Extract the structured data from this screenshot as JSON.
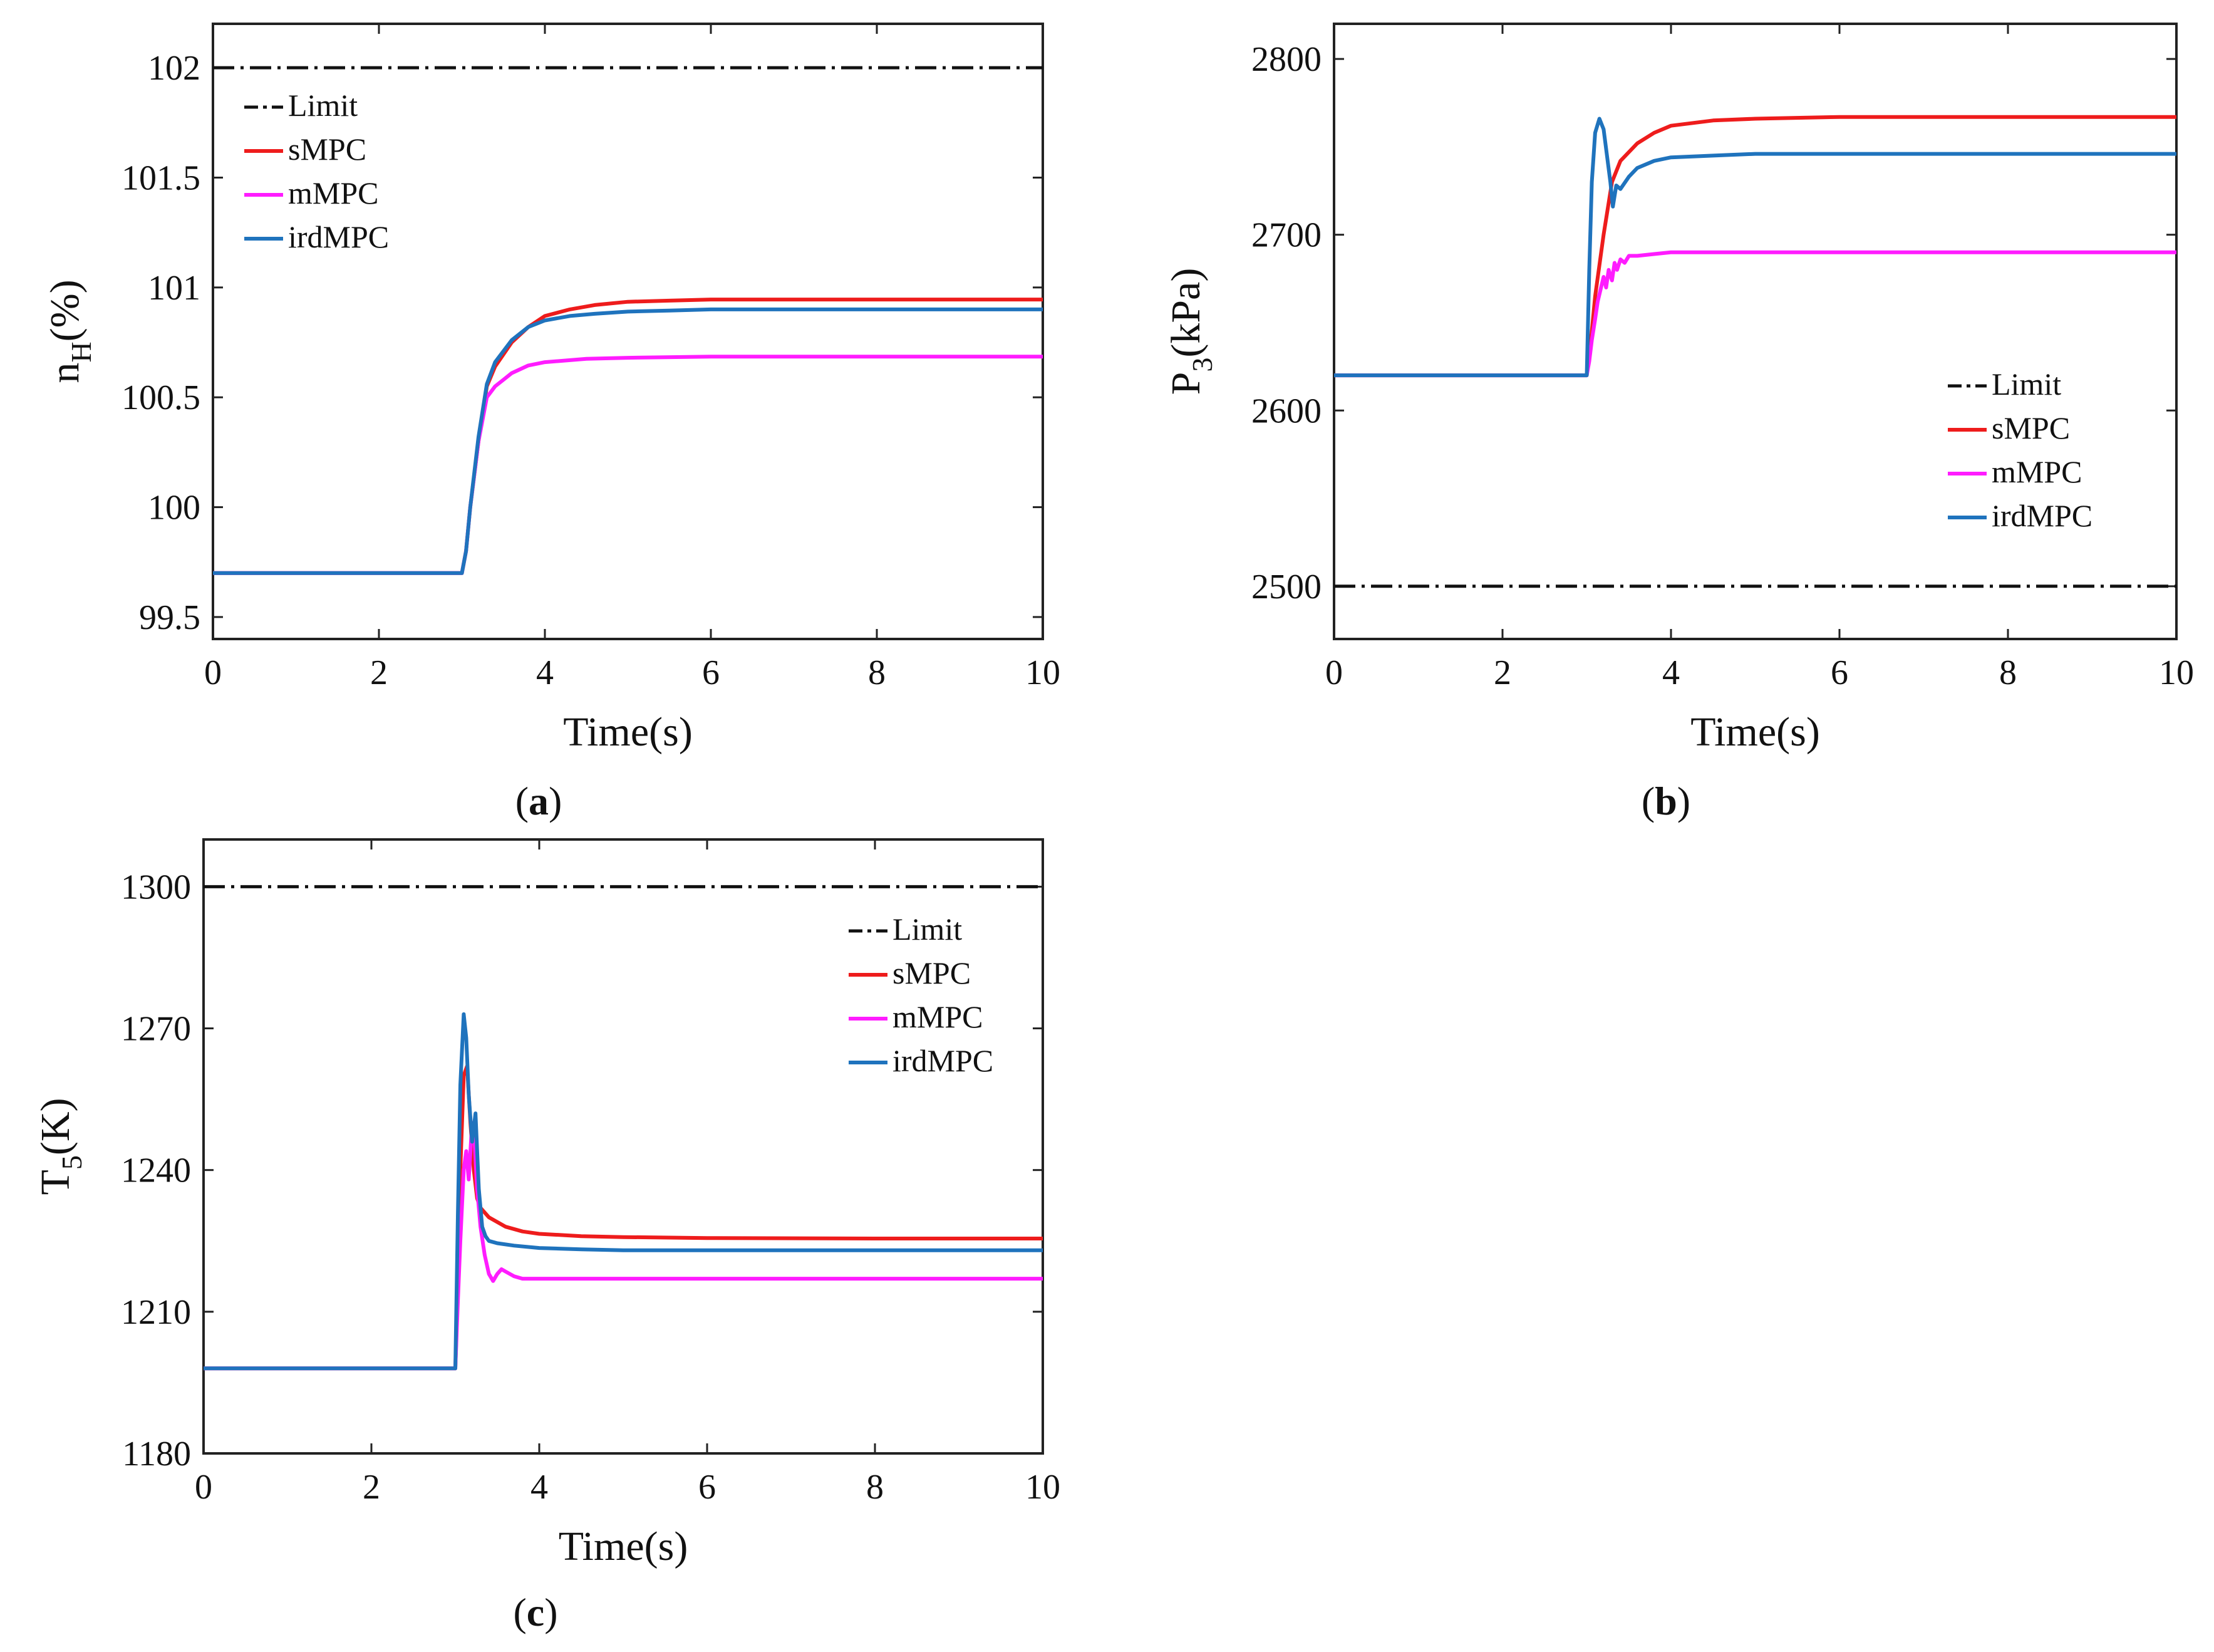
{
  "colors": {
    "Limit": "#111111",
    "sMPC": "#ee1c1c",
    "mMPC": "#ff1cff",
    "irdMPC": "#1f73bd"
  },
  "chart_data": [
    {
      "id": "a",
      "type": "line",
      "caption_letter": "a",
      "xlabel": "Time(s)",
      "ylabel_main": "n",
      "ylabel_sub": "H",
      "ylabel_unit": "(%)",
      "xlim": [
        0,
        10
      ],
      "ylim": [
        99.4,
        102.2
      ],
      "xticks": [
        "0",
        "2",
        "4",
        "6",
        "8",
        "10"
      ],
      "yticks": [
        "99.5",
        "100",
        "100.5",
        "101",
        "101.5",
        "102"
      ],
      "legend_position": "top-left",
      "series": [
        {
          "name": "Limit",
          "style": "dashdot",
          "x": [
            0,
            10
          ],
          "y": [
            102,
            102
          ]
        },
        {
          "name": "sMPC",
          "x": [
            0,
            3.0,
            3.05,
            3.1,
            3.2,
            3.3,
            3.4,
            3.6,
            3.8,
            4.0,
            4.3,
            4.6,
            5.0,
            5.5,
            6.0,
            7.0,
            8.0,
            10.0
          ],
          "y": [
            99.7,
            99.7,
            99.8,
            100.0,
            100.3,
            100.55,
            100.64,
            100.75,
            100.82,
            100.87,
            100.9,
            100.92,
            100.935,
            100.94,
            100.945,
            100.945,
            100.945,
            100.945
          ]
        },
        {
          "name": "mMPC",
          "x": [
            0,
            3.0,
            3.05,
            3.1,
            3.2,
            3.3,
            3.4,
            3.5,
            3.6,
            3.8,
            4.0,
            4.5,
            5.0,
            6.0,
            8.0,
            10.0
          ],
          "y": [
            99.7,
            99.7,
            99.8,
            100.0,
            100.3,
            100.5,
            100.55,
            100.58,
            100.61,
            100.645,
            100.66,
            100.675,
            100.68,
            100.685,
            100.685,
            100.685
          ]
        },
        {
          "name": "irdMPC",
          "x": [
            0,
            3.0,
            3.05,
            3.1,
            3.2,
            3.3,
            3.4,
            3.6,
            3.8,
            4.0,
            4.3,
            4.6,
            5.0,
            5.5,
            6.0,
            8.0,
            10.0
          ],
          "y": [
            99.7,
            99.7,
            99.8,
            100.0,
            100.32,
            100.56,
            100.66,
            100.76,
            100.82,
            100.85,
            100.87,
            100.88,
            100.89,
            100.895,
            100.9,
            100.9,
            100.9
          ]
        }
      ]
    },
    {
      "id": "b",
      "type": "line",
      "caption_letter": "b",
      "xlabel": "Time(s)",
      "ylabel_main": "P",
      "ylabel_sub": "3",
      "ylabel_unit": "(kPa)",
      "xlim": [
        0,
        10
      ],
      "ylim": [
        2470,
        2820
      ],
      "xticks": [
        "0",
        "2",
        "4",
        "6",
        "8",
        "10"
      ],
      "yticks": [
        "2500",
        "2600",
        "2700",
        "2800"
      ],
      "legend_position": "bottom-right",
      "series": [
        {
          "name": "Limit",
          "style": "dashdot",
          "x": [
            0,
            10
          ],
          "y": [
            2500,
            2500
          ]
        },
        {
          "name": "sMPC",
          "x": [
            0,
            3.0,
            3.05,
            3.1,
            3.2,
            3.3,
            3.4,
            3.6,
            3.8,
            4.0,
            4.5,
            5.0,
            6.0,
            8.0,
            10.0
          ],
          "y": [
            2620,
            2620,
            2640,
            2665,
            2700,
            2730,
            2742,
            2752,
            2758,
            2762,
            2765,
            2766,
            2767,
            2767,
            2767
          ]
        },
        {
          "name": "mMPC",
          "x": [
            0,
            3.0,
            3.03,
            3.06,
            3.1,
            3.13,
            3.16,
            3.2,
            3.23,
            3.26,
            3.3,
            3.33,
            3.36,
            3.4,
            3.45,
            3.5,
            3.6,
            3.8,
            4.0,
            5.0,
            6.0,
            8.0,
            10.0
          ],
          "y": [
            2620,
            2620,
            2628,
            2640,
            2652,
            2662,
            2668,
            2676,
            2670,
            2680,
            2674,
            2684,
            2680,
            2686,
            2684,
            2688,
            2688,
            2689,
            2690,
            2690,
            2690,
            2690,
            2690
          ]
        },
        {
          "name": "irdMPC",
          "x": [
            0,
            3.0,
            3.03,
            3.06,
            3.1,
            3.15,
            3.2,
            3.24,
            3.28,
            3.31,
            3.35,
            3.4,
            3.5,
            3.6,
            3.8,
            4.0,
            4.5,
            5.0,
            6.0,
            8.0,
            10.0
          ],
          "y": [
            2620,
            2620,
            2680,
            2730,
            2758,
            2766,
            2760,
            2745,
            2730,
            2716,
            2728,
            2726,
            2733,
            2738,
            2742,
            2744,
            2745,
            2746,
            2746,
            2746,
            2746
          ]
        }
      ]
    },
    {
      "id": "c",
      "type": "line",
      "caption_letter": "c",
      "xlabel": "Time(s)",
      "ylabel_main": "T",
      "ylabel_sub": "5",
      "ylabel_unit": "(K)",
      "xlim": [
        0,
        10
      ],
      "ylim": [
        1180,
        1310
      ],
      "xticks": [
        "0",
        "2",
        "4",
        "6",
        "8",
        "10"
      ],
      "yticks": [
        "1180",
        "1210",
        "1240",
        "1270",
        "1300"
      ],
      "legend_position": "top-right",
      "series": [
        {
          "name": "Limit",
          "style": "dashdot",
          "x": [
            0,
            10
          ],
          "y": [
            1300,
            1300
          ]
        },
        {
          "name": "sMPC",
          "x": [
            0,
            3.0,
            3.03,
            3.06,
            3.1,
            3.14,
            3.18,
            3.22,
            3.26,
            3.3,
            3.4,
            3.6,
            3.8,
            4.0,
            4.5,
            5.0,
            6.0,
            8.0,
            10.0
          ],
          "y": [
            1198,
            1198,
            1215,
            1240,
            1260,
            1262,
            1250,
            1240,
            1234,
            1232,
            1230,
            1228,
            1227,
            1226.5,
            1226,
            1225.8,
            1225.6,
            1225.5,
            1225.5
          ]
        },
        {
          "name": "mMPC",
          "x": [
            0,
            3.0,
            3.03,
            3.06,
            3.1,
            3.13,
            3.16,
            3.2,
            3.23,
            3.26,
            3.3,
            3.35,
            3.4,
            3.45,
            3.5,
            3.55,
            3.6,
            3.7,
            3.8,
            4.0,
            4.5,
            5.0,
            6.0,
            8.0,
            10.0
          ],
          "y": [
            1198,
            1198,
            1212,
            1225,
            1240,
            1244,
            1238,
            1250,
            1246,
            1236,
            1228,
            1222,
            1218,
            1216.5,
            1218,
            1219,
            1218.5,
            1217.5,
            1217,
            1217,
            1217,
            1217,
            1217,
            1217,
            1217
          ]
        },
        {
          "name": "irdMPC",
          "x": [
            0,
            3.0,
            3.03,
            3.06,
            3.1,
            3.13,
            3.16,
            3.2,
            3.24,
            3.28,
            3.32,
            3.36,
            3.4,
            3.5,
            3.7,
            4.0,
            4.5,
            5.0,
            6.0,
            8.0,
            10.0
          ],
          "y": [
            1198,
            1198,
            1230,
            1258,
            1273,
            1268,
            1256,
            1246,
            1252,
            1236,
            1228,
            1226,
            1225,
            1224.5,
            1224,
            1223.5,
            1223.2,
            1223,
            1223,
            1223,
            1223
          ]
        }
      ]
    }
  ]
}
